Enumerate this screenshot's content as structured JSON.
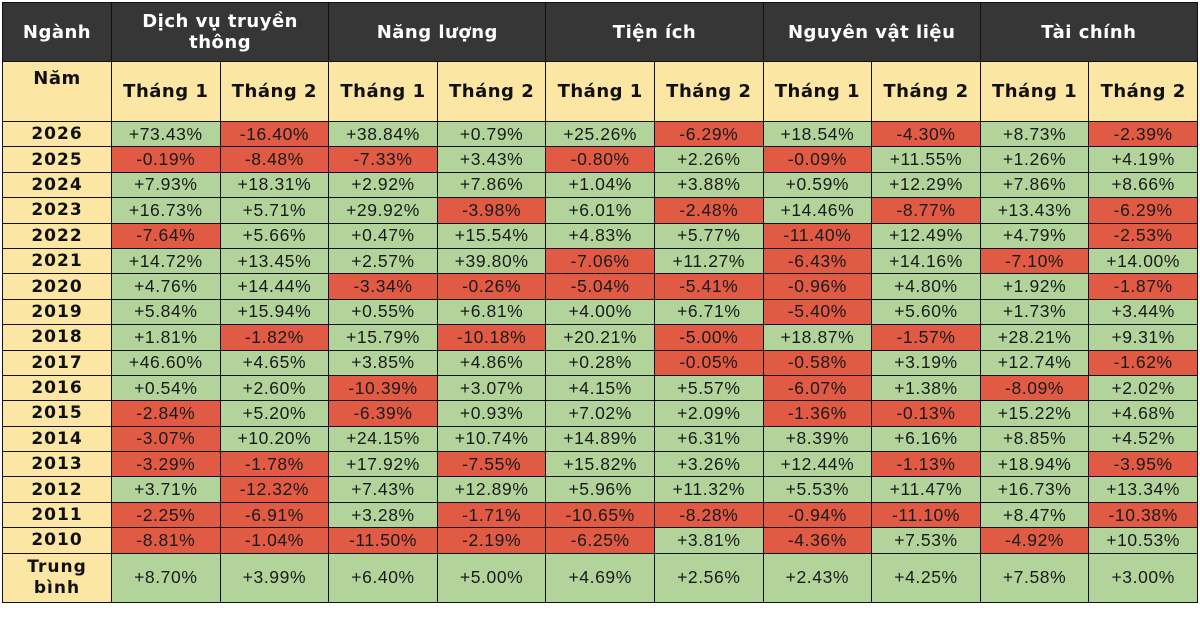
{
  "colors": {
    "header_bg": "#363636",
    "header_text": "#ffffff",
    "subheader_bg": "#fce6a4",
    "year_bg": "#fce6a4",
    "positive_bg": "#b2d49b",
    "negative_bg": "#e05a44",
    "border": "#111111"
  },
  "header": {
    "corner_label": "Ngành",
    "sectors": [
      "Dịch vụ truyền thông",
      "Năng lượng",
      "Tiện ích",
      "Nguyên vật liệu",
      "Tài chính"
    ]
  },
  "subheader": {
    "year_label": "Năm",
    "months": [
      "Tháng 1",
      "Tháng 2",
      "Tháng 1",
      "Tháng 2",
      "Tháng 1",
      "Tháng 2",
      "Tháng 1",
      "Tháng 2",
      "Tháng 1",
      "Tháng 2"
    ]
  },
  "rows": [
    {
      "year": "2026",
      "values": [
        "+73.43%",
        "-16.40%",
        "+38.84%",
        "+0.79%",
        "+25.26%",
        "-6.29%",
        "+18.54%",
        "-4.30%",
        "+8.73%",
        "-2.39%"
      ]
    },
    {
      "year": "2025",
      "values": [
        "-0.19%",
        "-8.48%",
        "-7.33%",
        "+3.43%",
        "-0.80%",
        "+2.26%",
        "-0.09%",
        "+11.55%",
        "+1.26%",
        "+4.19%"
      ]
    },
    {
      "year": "2024",
      "values": [
        "+7.93%",
        "+18.31%",
        "+2.92%",
        "+7.86%",
        "+1.04%",
        "+3.88%",
        "+0.59%",
        "+12.29%",
        "+7.86%",
        "+8.66%"
      ]
    },
    {
      "year": "2023",
      "values": [
        "+16.73%",
        "+5.71%",
        "+29.92%",
        "-3.98%",
        "+6.01%",
        "-2.48%",
        "+14.46%",
        "-8.77%",
        "+13.43%",
        "-6.29%"
      ]
    },
    {
      "year": "2022",
      "values": [
        "-7.64%",
        "+5.66%",
        "+0.47%",
        "+15.54%",
        "+4.83%",
        "+5.77%",
        "-11.40%",
        "+12.49%",
        "+4.79%",
        "-2.53%"
      ]
    },
    {
      "year": "2021",
      "values": [
        "+14.72%",
        "+13.45%",
        "+2.57%",
        "+39.80%",
        "-7.06%",
        "+11.27%",
        "-6.43%",
        "+14.16%",
        "-7.10%",
        "+14.00%"
      ]
    },
    {
      "year": "2020",
      "values": [
        "+4.76%",
        "+14.44%",
        "-3.34%",
        "-0.26%",
        "-5.04%",
        "-5.41%",
        "-0.96%",
        "+4.80%",
        "+1.92%",
        "-1.87%"
      ]
    },
    {
      "year": "2019",
      "values": [
        "+5.84%",
        "+15.94%",
        "+0.55%",
        "+6.81%",
        "+4.00%",
        "+6.71%",
        "-5.40%",
        "+5.60%",
        "+1.73%",
        "+3.44%"
      ]
    },
    {
      "year": "2018",
      "values": [
        "+1.81%",
        "-1.82%",
        "+15.79%",
        "-10.18%",
        "+20.21%",
        "-5.00%",
        "+18.87%",
        "-1.57%",
        "+28.21%",
        "+9.31%"
      ]
    },
    {
      "year": "2017",
      "values": [
        "+46.60%",
        "+4.65%",
        "+3.85%",
        "+4.86%",
        "+0.28%",
        "-0.05%",
        "-0.58%",
        "+3.19%",
        "+12.74%",
        "-1.62%"
      ]
    },
    {
      "year": "2016",
      "values": [
        "+0.54%",
        "+2.60%",
        "-10.39%",
        "+3.07%",
        "+4.15%",
        "+5.57%",
        "-6.07%",
        "+1.38%",
        "-8.09%",
        "+2.02%"
      ]
    },
    {
      "year": "2015",
      "values": [
        "-2.84%",
        "+5.20%",
        "-6.39%",
        "+0.93%",
        "+7.02%",
        "+2.09%",
        "-1.36%",
        "-0.13%",
        "+15.22%",
        "+4.68%"
      ]
    },
    {
      "year": "2014",
      "values": [
        "-3.07%",
        "+10.20%",
        "+24.15%",
        "+10.74%",
        "+14.89%",
        "+6.31%",
        "+8.39%",
        "+6.16%",
        "+8.85%",
        "+4.52%"
      ]
    },
    {
      "year": "2013",
      "values": [
        "-3.29%",
        "-1.78%",
        "+17.92%",
        "-7.55%",
        "+15.82%",
        "+3.26%",
        "+12.44%",
        "-1.13%",
        "+18.94%",
        "-3.95%"
      ]
    },
    {
      "year": "2012",
      "values": [
        "+3.71%",
        "-12.32%",
        "+7.43%",
        "+12.89%",
        "+5.96%",
        "+11.32%",
        "+5.53%",
        "+11.47%",
        "+16.73%",
        "+13.34%"
      ]
    },
    {
      "year": "2011",
      "values": [
        "-2.25%",
        "-6.91%",
        "+3.28%",
        "-1.71%",
        "-10.65%",
        "-8.28%",
        "-0.94%",
        "-11.10%",
        "+8.47%",
        "-10.38%"
      ]
    },
    {
      "year": "2010",
      "values": [
        "-8.81%",
        "-1.04%",
        "-11.50%",
        "-2.19%",
        "-6.25%",
        "+3.81%",
        "-4.36%",
        "+7.53%",
        "-4.92%",
        "+10.53%"
      ]
    }
  ],
  "average": {
    "label": "Trung bình",
    "values": [
      "+8.70%",
      "+3.99%",
      "+6.40%",
      "+5.00%",
      "+4.69%",
      "+2.56%",
      "+2.43%",
      "+4.25%",
      "+7.58%",
      "+3.00%"
    ]
  }
}
